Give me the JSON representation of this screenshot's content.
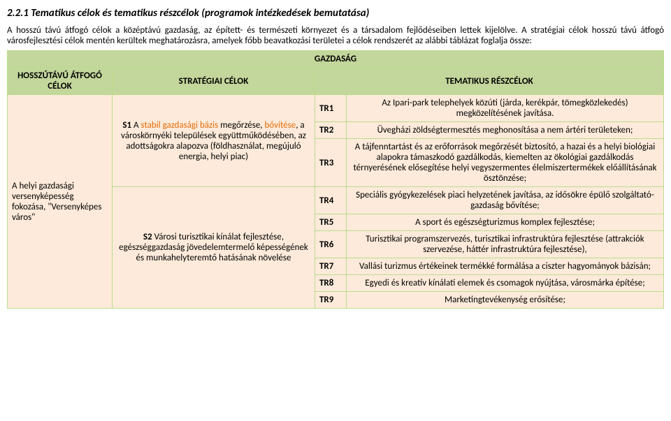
{
  "sectionTitle": "2.2.1  Tematikus célok és tematikus részcélok (programok intézkedések bemutatása)",
  "intro1": "A hosszú távú átfogó célok a középtávú gazdaság, az épített- és természeti környezet és a társadalom fejlődéseiben lettek kijelölve. A stratégiai célok hosszú távú átfogó városfejlesztési célok mentén kerültek meghatározásra, amelyek főbb beavatkozási területei a célok rendszerét az alábbi táblázat foglalja össze:",
  "table": {
    "superHeader": "GAZDASÁG",
    "headers": {
      "h1": "HOSSZÚTÁVÚ ÁTFOGÓ CÉLOK",
      "h2": "STRATÉGIAI CÉLOK",
      "h3": "TEMATIKUS RÉSZCÉLOK"
    },
    "leftCell": "A helyi gazdasági versenyképesség fokozása, \"Versenyképes város\"",
    "s1_bold": "S1",
    "s1_plain": " A ",
    "s1_orange1": "stabil gazdasági bázis",
    "s1_plain2": " megőrzése, ",
    "s1_orange2": "bővítése",
    "s1_plain3": ", a városkörnyéki települések együttműködésében, az adottságokra alapozva (földhasználat, megújuló energia, helyi piac)",
    "s2_bold": "S2",
    "s2_text": " Városi turisztikai kínálat fejlesztése, egészséggazdaság jövedelemtermelő képességének és munkahelyteremtő hatásának növelése",
    "rows": [
      {
        "code": "TR1",
        "desc": "Az Ipari-park telephelyek közúti (járda, kerékpár, tömegközlekedés) megközelítésének javítása."
      },
      {
        "code": "TR2",
        "desc": "Üvegházi zöldségtermesztés meghonosítása a nem ártéri területeken;"
      },
      {
        "code": "TR3",
        "desc": "A tájfenntartást és az erőforrások megőrzését biztosító, a hazai és a helyi biológiai alapokra támaszkodó gazdálkodás, kiemelten az ökológiai gazdálkodás térnyerésének elősegítése helyi vegyszermentes élelmiszertermékek előállításának ösztönzése;"
      },
      {
        "code": "TR4",
        "desc": "Speciális gyógykezelések piaci helyzetének javítása, az idősökre épülő szolgáltató-gazdaság bővítése;"
      },
      {
        "code": "TR5",
        "desc": "A sport és egészségturizmus komplex fejlesztése;"
      },
      {
        "code": "TR6",
        "desc": "Turisztikai programszervezés, turisztikai infrastruktúra fejlesztése (attrakciók szervezése, háttér infrastruktúra fejlesztése),"
      },
      {
        "code": "TR7",
        "desc": "Vallási turizmus értékeinek termékké formálása a ciszter hagyományok bázisán;"
      },
      {
        "code": "TR8",
        "desc": "Egyedi és kreatív kínálati elemek és csomagok nyújtása, városmárka építése;"
      },
      {
        "code": "TR9",
        "desc": "Marketingtevékenység erősítése;"
      }
    ]
  }
}
